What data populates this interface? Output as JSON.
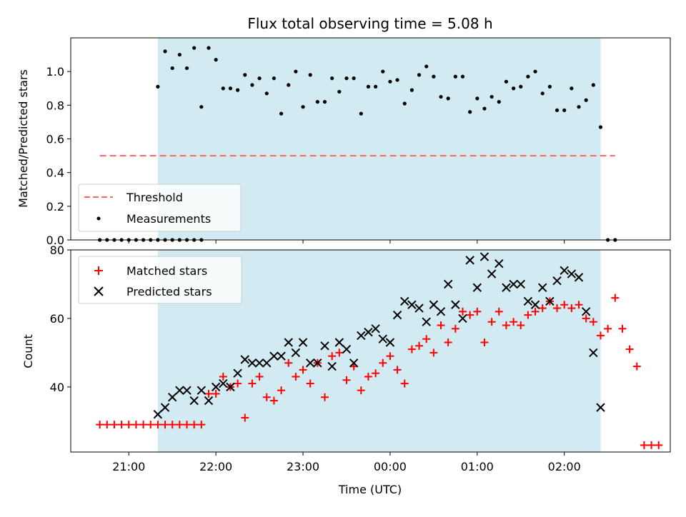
{
  "figure": {
    "title": "Flux total observing time = 5.08 h",
    "xlabel": "Time (UTC)",
    "colors": {
      "shade": "#add8e6",
      "threshold": "#ff6666",
      "matched": "#ff0000",
      "predicted": "#000000",
      "measure": "#000000"
    }
  },
  "chart_data": [
    {
      "type": "scatter",
      "panel": "top",
      "ylabel": "Matched/Predicted stars",
      "ylim": [
        0,
        1.2
      ],
      "yticks": [
        "0.0",
        "0.2",
        "0.4",
        "0.6",
        "0.8",
        "1.0"
      ],
      "xlim": [
        "20:20",
        "03:13"
      ],
      "xticks": [
        "21:00",
        "22:00",
        "23:00",
        "00:00",
        "01:00",
        "02:00"
      ],
      "shaded_interval": [
        "21:20",
        "02:25"
      ],
      "legend": {
        "position": "lower-left",
        "entries": [
          "Threshold",
          "Measurements"
        ]
      },
      "threshold": {
        "name": "Threshold",
        "value": 0.5,
        "x_range": [
          "20:40",
          "02:35"
        ],
        "style": "dashed"
      },
      "series": [
        {
          "name": "Measurements",
          "marker": "dot",
          "points": [
            [
              "20:40",
              0
            ],
            [
              "20:45",
              0
            ],
            [
              "20:50",
              0
            ],
            [
              "20:55",
              0
            ],
            [
              "21:00",
              0
            ],
            [
              "21:05",
              0
            ],
            [
              "21:10",
              0
            ],
            [
              "21:15",
              0
            ],
            [
              "21:20",
              0
            ],
            [
              "21:25",
              0
            ],
            [
              "21:30",
              0
            ],
            [
              "21:35",
              0
            ],
            [
              "21:40",
              0
            ],
            [
              "21:45",
              0
            ],
            [
              "21:50",
              0
            ],
            [
              "21:20",
              0.91
            ],
            [
              "21:25",
              1.12
            ],
            [
              "21:30",
              1.02
            ],
            [
              "21:35",
              1.1
            ],
            [
              "21:40",
              1.02
            ],
            [
              "21:45",
              1.14
            ],
            [
              "21:50",
              0.79
            ],
            [
              "21:55",
              1.14
            ],
            [
              "22:00",
              1.07
            ],
            [
              "22:05",
              0.9
            ],
            [
              "22:10",
              0.9
            ],
            [
              "22:15",
              0.89
            ],
            [
              "22:20",
              0.98
            ],
            [
              "22:25",
              0.92
            ],
            [
              "22:30",
              0.96
            ],
            [
              "22:35",
              0.87
            ],
            [
              "22:40",
              0.96
            ],
            [
              "22:45",
              0.75
            ],
            [
              "22:50",
              0.92
            ],
            [
              "22:55",
              1.0
            ],
            [
              "23:00",
              0.79
            ],
            [
              "23:05",
              0.98
            ],
            [
              "23:10",
              0.82
            ],
            [
              "23:15",
              0.82
            ],
            [
              "23:20",
              0.96
            ],
            [
              "23:25",
              0.88
            ],
            [
              "23:30",
              0.96
            ],
            [
              "23:35",
              0.96
            ],
            [
              "23:40",
              0.75
            ],
            [
              "23:45",
              0.91
            ],
            [
              "23:50",
              0.91
            ],
            [
              "23:55",
              1.0
            ],
            [
              "00:00",
              0.94
            ],
            [
              "00:05",
              0.95
            ],
            [
              "00:10",
              0.81
            ],
            [
              "00:15",
              0.89
            ],
            [
              "00:20",
              0.98
            ],
            [
              "00:25",
              1.03
            ],
            [
              "00:30",
              0.97
            ],
            [
              "00:35",
              0.85
            ],
            [
              "00:40",
              0.84
            ],
            [
              "00:45",
              0.97
            ],
            [
              "00:50",
              0.97
            ],
            [
              "00:55",
              0.76
            ],
            [
              "01:00",
              0.84
            ],
            [
              "01:05",
              0.78
            ],
            [
              "01:10",
              0.85
            ],
            [
              "01:15",
              0.82
            ],
            [
              "01:20",
              0.94
            ],
            [
              "01:25",
              0.9
            ],
            [
              "01:30",
              0.91
            ],
            [
              "01:35",
              0.97
            ],
            [
              "01:40",
              1.0
            ],
            [
              "01:45",
              0.87
            ],
            [
              "01:50",
              0.91
            ],
            [
              "01:55",
              0.77
            ],
            [
              "02:00",
              0.77
            ],
            [
              "02:05",
              0.9
            ],
            [
              "02:10",
              0.79
            ],
            [
              "02:15",
              0.83
            ],
            [
              "02:20",
              0.92
            ],
            [
              "02:25",
              0.67
            ],
            [
              "02:30",
              0
            ],
            [
              "02:35",
              0
            ]
          ]
        }
      ]
    },
    {
      "type": "scatter",
      "panel": "bottom",
      "ylabel": "Count",
      "ylim": [
        21,
        80
      ],
      "yticks": [
        "40",
        "60",
        "80"
      ],
      "xlim": [
        "20:20",
        "03:13"
      ],
      "xticks": [
        "21:00",
        "22:00",
        "23:00",
        "00:00",
        "01:00",
        "02:00"
      ],
      "shaded_interval": [
        "21:20",
        "02:25"
      ],
      "legend": {
        "position": "upper-left",
        "entries": [
          "Matched stars",
          "Predicted stars"
        ]
      },
      "series": [
        {
          "name": "Matched stars",
          "marker": "plus",
          "points": [
            [
              "20:40",
              29
            ],
            [
              "20:45",
              29
            ],
            [
              "20:50",
              29
            ],
            [
              "20:55",
              29
            ],
            [
              "21:00",
              29
            ],
            [
              "21:05",
              29
            ],
            [
              "21:10",
              29
            ],
            [
              "21:15",
              29
            ],
            [
              "21:20",
              29
            ],
            [
              "21:25",
              29
            ],
            [
              "21:30",
              29
            ],
            [
              "21:35",
              29
            ],
            [
              "21:40",
              29
            ],
            [
              "21:45",
              29
            ],
            [
              "21:50",
              29
            ],
            [
              "21:55",
              38
            ],
            [
              "22:00",
              38
            ],
            [
              "22:05",
              43
            ],
            [
              "22:10",
              40
            ],
            [
              "22:15",
              41
            ],
            [
              "22:20",
              31
            ],
            [
              "22:25",
              41
            ],
            [
              "22:30",
              43
            ],
            [
              "22:35",
              37
            ],
            [
              "22:40",
              36
            ],
            [
              "22:45",
              39
            ],
            [
              "22:50",
              47
            ],
            [
              "22:55",
              43
            ],
            [
              "23:00",
              45
            ],
            [
              "23:05",
              41
            ],
            [
              "23:10",
              47
            ],
            [
              "23:15",
              37
            ],
            [
              "23:20",
              49
            ],
            [
              "23:25",
              50
            ],
            [
              "23:30",
              42
            ],
            [
              "23:35",
              46
            ],
            [
              "23:40",
              39
            ],
            [
              "23:45",
              43
            ],
            [
              "23:50",
              44
            ],
            [
              "23:55",
              47
            ],
            [
              "00:00",
              49
            ],
            [
              "00:05",
              45
            ],
            [
              "00:10",
              41
            ],
            [
              "00:15",
              51
            ],
            [
              "00:20",
              52
            ],
            [
              "00:25",
              54
            ],
            [
              "00:30",
              50
            ],
            [
              "00:35",
              58
            ],
            [
              "00:40",
              53
            ],
            [
              "00:45",
              57
            ],
            [
              "00:50",
              62
            ],
            [
              "00:55",
              61
            ],
            [
              "01:00",
              62
            ],
            [
              "01:05",
              53
            ],
            [
              "01:10",
              59
            ],
            [
              "01:15",
              62
            ],
            [
              "01:20",
              58
            ],
            [
              "01:25",
              59
            ],
            [
              "01:30",
              58
            ],
            [
              "01:35",
              61
            ],
            [
              "01:40",
              62
            ],
            [
              "01:45",
              63
            ],
            [
              "01:50",
              65
            ],
            [
              "01:55",
              63
            ],
            [
              "02:00",
              64
            ],
            [
              "02:05",
              63
            ],
            [
              "02:10",
              64
            ],
            [
              "02:15",
              60
            ],
            [
              "02:20",
              59
            ],
            [
              "02:25",
              55
            ],
            [
              "02:30",
              57
            ],
            [
              "02:35",
              66
            ],
            [
              "02:40",
              57
            ],
            [
              "02:45",
              51
            ],
            [
              "02:50",
              46
            ],
            [
              "02:55",
              23
            ],
            [
              "03:00",
              23
            ],
            [
              "03:05",
              23
            ]
          ]
        },
        {
          "name": "Predicted stars",
          "marker": "x",
          "points": [
            [
              "21:20",
              32
            ],
            [
              "21:25",
              34
            ],
            [
              "21:30",
              37
            ],
            [
              "21:35",
              39
            ],
            [
              "21:40",
              39
            ],
            [
              "21:45",
              36
            ],
            [
              "21:50",
              39
            ],
            [
              "21:55",
              36
            ],
            [
              "22:00",
              40
            ],
            [
              "22:05",
              41
            ],
            [
              "22:10",
              40
            ],
            [
              "22:15",
              44
            ],
            [
              "22:20",
              48
            ],
            [
              "22:25",
              47
            ],
            [
              "22:30",
              47
            ],
            [
              "22:35",
              47
            ],
            [
              "22:40",
              49
            ],
            [
              "22:45",
              49
            ],
            [
              "22:50",
              53
            ],
            [
              "22:55",
              50
            ],
            [
              "23:00",
              53
            ],
            [
              "23:05",
              47
            ],
            [
              "23:10",
              47
            ],
            [
              "23:15",
              52
            ],
            [
              "23:20",
              46
            ],
            [
              "23:25",
              53
            ],
            [
              "23:30",
              51
            ],
            [
              "23:35",
              47
            ],
            [
              "23:40",
              55
            ],
            [
              "23:45",
              56
            ],
            [
              "23:50",
              57
            ],
            [
              "23:55",
              54
            ],
            [
              "00:00",
              53
            ],
            [
              "00:05",
              61
            ],
            [
              "00:10",
              65
            ],
            [
              "00:15",
              64
            ],
            [
              "00:20",
              63
            ],
            [
              "00:25",
              59
            ],
            [
              "00:30",
              64
            ],
            [
              "00:35",
              62
            ],
            [
              "00:40",
              70
            ],
            [
              "00:45",
              64
            ],
            [
              "00:50",
              60
            ],
            [
              "00:55",
              77
            ],
            [
              "01:00",
              69
            ],
            [
              "01:05",
              78
            ],
            [
              "01:10",
              73
            ],
            [
              "01:15",
              76
            ],
            [
              "01:20",
              69
            ],
            [
              "01:25",
              70
            ],
            [
              "01:30",
              70
            ],
            [
              "01:35",
              65
            ],
            [
              "01:40",
              64
            ],
            [
              "01:45",
              69
            ],
            [
              "01:50",
              65
            ],
            [
              "01:55",
              71
            ],
            [
              "02:00",
              74
            ],
            [
              "02:05",
              73
            ],
            [
              "02:10",
              72
            ],
            [
              "02:15",
              62
            ],
            [
              "02:20",
              50
            ],
            [
              "02:25",
              34
            ]
          ]
        }
      ]
    }
  ]
}
